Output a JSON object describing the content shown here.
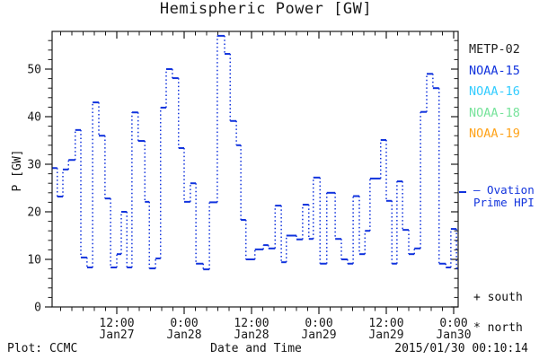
{
  "title": "Hemispheric Power [GW]",
  "axes": {
    "ylabel": "P [GW]",
    "xlabel": "Date and Time"
  },
  "legend": {
    "satellites": [
      {
        "label": "METP-02",
        "color": "#222222"
      },
      {
        "label": "NOAA-15",
        "color": "#1133dd"
      },
      {
        "label": "NOAA-16",
        "color": "#33ccff"
      },
      {
        "label": "NOAA-18",
        "color": "#77e39b"
      },
      {
        "label": "NOAA-19",
        "color": "#ffa31a"
      }
    ],
    "model_line1": "— Ovation",
    "model_line2": "Prime HPI",
    "model_color": "#1133dd",
    "south_label": "+ south",
    "north_label": "* north"
  },
  "footer": {
    "left": "Plot: CCMC",
    "right": "2015/01/30 00:10:14"
  },
  "chart_data": {
    "type": "line",
    "style": "steps-with-dotted-risers",
    "title": "Hemispheric Power [GW]",
    "xlabel": "Date and Time",
    "ylabel": "P [GW]",
    "ylim": [
      0,
      58
    ],
    "y_major_ticks": [
      0,
      10,
      20,
      30,
      40,
      50
    ],
    "y_minor_step": 2,
    "x_hours_span": [
      0.55,
      73.0
    ],
    "x_minor_step_hours": 2,
    "x_major_ticks": [
      {
        "t": 12,
        "time": "12:00",
        "date": "Jan27"
      },
      {
        "t": 24,
        "time": "0:00",
        "date": "Jan28"
      },
      {
        "t": 36,
        "time": "12:00",
        "date": "Jan28"
      },
      {
        "t": 48,
        "time": "0:00",
        "date": "Jan29"
      },
      {
        "t": 60,
        "time": "12:00",
        "date": "Jan29"
      },
      {
        "t": 72,
        "time": "0:00",
        "date": "Jan30"
      }
    ],
    "series": [
      {
        "name": "Ovation Prime HPI",
        "color": "#1133dd",
        "units": "GW",
        "t_is": "hours since Jan27 00:00",
        "points": [
          {
            "t": 0.55,
            "gw": 29.2
          },
          {
            "t": 1.4,
            "gw": 23.2
          },
          {
            "t": 2.4,
            "gw": 28.9
          },
          {
            "t": 3.4,
            "gw": 30.9
          },
          {
            "t": 4.6,
            "gw": 37.2
          },
          {
            "t": 5.6,
            "gw": 10.4
          },
          {
            "t": 6.7,
            "gw": 8.3
          },
          {
            "t": 7.7,
            "gw": 43.0
          },
          {
            "t": 8.8,
            "gw": 36.0
          },
          {
            "t": 9.9,
            "gw": 22.8
          },
          {
            "t": 10.9,
            "gw": 8.3
          },
          {
            "t": 12.0,
            "gw": 11.1
          },
          {
            "t": 12.8,
            "gw": 20.0
          },
          {
            "t": 13.8,
            "gw": 8.3
          },
          {
            "t": 14.7,
            "gw": 40.9
          },
          {
            "t": 15.8,
            "gw": 34.9
          },
          {
            "t": 17.0,
            "gw": 22.1
          },
          {
            "t": 17.8,
            "gw": 8.1
          },
          {
            "t": 18.9,
            "gw": 10.2
          },
          {
            "t": 19.8,
            "gw": 41.9
          },
          {
            "t": 20.8,
            "gw": 50.0
          },
          {
            "t": 21.9,
            "gw": 48.1
          },
          {
            "t": 23.0,
            "gw": 33.4
          },
          {
            "t": 24.0,
            "gw": 22.1
          },
          {
            "t": 25.1,
            "gw": 26.0
          },
          {
            "t": 26.1,
            "gw": 9.1
          },
          {
            "t": 27.4,
            "gw": 7.9
          },
          {
            "t": 28.5,
            "gw": 22.0
          },
          {
            "t": 29.9,
            "gw": 57.0
          },
          {
            "t": 31.2,
            "gw": 53.2
          },
          {
            "t": 32.2,
            "gw": 39.1
          },
          {
            "t": 33.3,
            "gw": 34.0
          },
          {
            "t": 34.1,
            "gw": 18.3
          },
          {
            "t": 35.0,
            "gw": 10.0
          },
          {
            "t": 36.6,
            "gw": 12.1
          },
          {
            "t": 38.1,
            "gw": 13.0
          },
          {
            "t": 39.0,
            "gw": 12.3
          },
          {
            "t": 40.2,
            "gw": 21.3
          },
          {
            "t": 41.3,
            "gw": 9.4
          },
          {
            "t": 42.2,
            "gw": 15.0
          },
          {
            "t": 44.0,
            "gw": 14.2
          },
          {
            "t": 45.1,
            "gw": 21.5
          },
          {
            "t": 46.2,
            "gw": 14.3
          },
          {
            "t": 47.0,
            "gw": 27.2
          },
          {
            "t": 48.2,
            "gw": 9.1
          },
          {
            "t": 49.4,
            "gw": 24.0
          },
          {
            "t": 50.9,
            "gw": 14.3
          },
          {
            "t": 52.0,
            "gw": 10.0
          },
          {
            "t": 53.1,
            "gw": 9.1
          },
          {
            "t": 54.1,
            "gw": 23.3
          },
          {
            "t": 55.2,
            "gw": 11.1
          },
          {
            "t": 56.2,
            "gw": 16.0
          },
          {
            "t": 57.1,
            "gw": 27.0
          },
          {
            "t": 59.0,
            "gw": 35.1
          },
          {
            "t": 60.0,
            "gw": 22.3
          },
          {
            "t": 61.0,
            "gw": 9.1
          },
          {
            "t": 61.9,
            "gw": 26.4
          },
          {
            "t": 62.9,
            "gw": 16.2
          },
          {
            "t": 64.0,
            "gw": 11.1
          },
          {
            "t": 65.0,
            "gw": 12.3
          },
          {
            "t": 66.1,
            "gw": 41.0
          },
          {
            "t": 67.2,
            "gw": 49.0
          },
          {
            "t": 68.3,
            "gw": 46.0
          },
          {
            "t": 69.4,
            "gw": 9.1
          },
          {
            "t": 70.6,
            "gw": 8.3
          },
          {
            "t": 71.5,
            "gw": 16.4
          },
          {
            "t": 72.5,
            "gw": 8.1
          }
        ]
      }
    ]
  }
}
